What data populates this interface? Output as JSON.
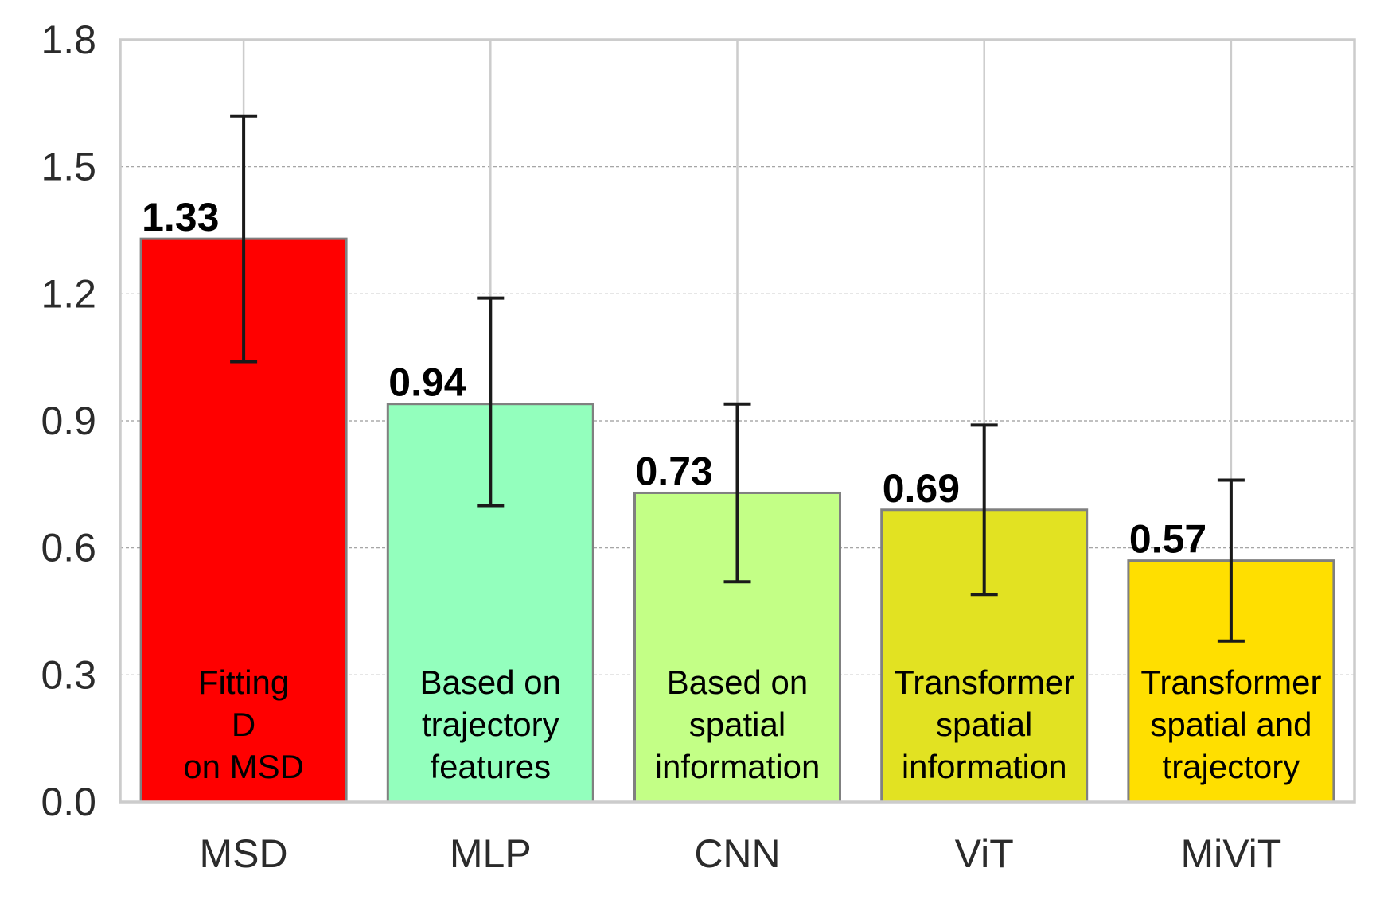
{
  "chart_data": {
    "type": "bar",
    "title": "",
    "xlabel": "",
    "ylabel": "",
    "ylim": [
      0,
      1.8
    ],
    "yticks": [
      "0.0",
      "0.3",
      "0.6",
      "0.9",
      "1.2",
      "1.5",
      "1.8"
    ],
    "grid": "on",
    "categories": [
      "MSD",
      "MLP",
      "CNN",
      "ViT",
      "MiViT"
    ],
    "values": [
      1.33,
      0.94,
      0.73,
      0.69,
      0.57
    ],
    "value_labels": [
      "1.33",
      "0.94",
      "0.73",
      "0.69",
      "0.57"
    ],
    "error_low": [
      1.04,
      0.7,
      0.52,
      0.49,
      0.38
    ],
    "error_high": [
      1.62,
      1.19,
      0.94,
      0.89,
      0.76
    ],
    "bar_colors": [
      "#ff0000",
      "#93ffbd",
      "#c3ff86",
      "#e2e222",
      "#ffdf00"
    ],
    "annotations": [
      [
        "Fitting",
        "D",
        "on MSD"
      ],
      [
        "Based on",
        "trajectory",
        "features"
      ],
      [
        "Based on",
        "spatial",
        "information"
      ],
      [
        "Transformer",
        "spatial",
        "information"
      ],
      [
        "Transformer",
        "spatial and",
        "trajectory"
      ]
    ]
  }
}
